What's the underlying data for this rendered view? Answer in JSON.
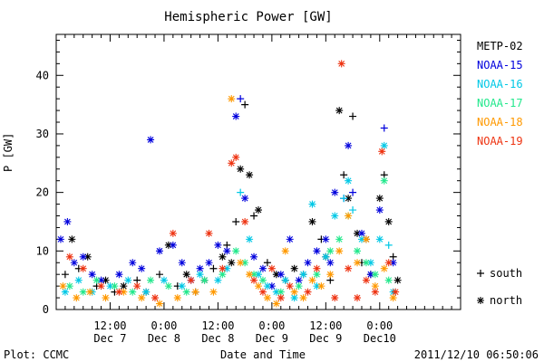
{
  "chart_data": {
    "type": "scatter",
    "title": "Hemispheric Power [GW]",
    "ylabel": "P [GW]",
    "xlabel": "Date and Time",
    "ylim": [
      0,
      47
    ],
    "yticks": [
      0,
      10,
      20,
      30,
      40
    ],
    "xlim_hours": [
      0,
      90
    ],
    "xticks": [
      {
        "h": 12,
        "l1": "12:00",
        "l2": "Dec 7"
      },
      {
        "h": 24,
        "l1": "0:00",
        "l2": "Dec 8"
      },
      {
        "h": 36,
        "l1": "12:00",
        "l2": "Dec 8"
      },
      {
        "h": 48,
        "l1": "0:00",
        "l2": "Dec 9"
      },
      {
        "h": 60,
        "l1": "12:00",
        "l2": "Dec 9"
      },
      {
        "h": 72,
        "l1": "0:00",
        "l2": "Dec10"
      }
    ],
    "grid": false,
    "legend_placement": "right",
    "series": [
      {
        "name": "METP-02",
        "color": "#000000",
        "points": [
          [
            2,
            6,
            "+"
          ],
          [
            3.5,
            12,
            "*"
          ],
          [
            5,
            7,
            "+"
          ],
          [
            7,
            9,
            "*"
          ],
          [
            9,
            4,
            "+"
          ],
          [
            11,
            5,
            "*"
          ],
          [
            13,
            3,
            "+"
          ],
          [
            15,
            4,
            "*"
          ],
          [
            18,
            5,
            "+"
          ],
          [
            20,
            3,
            "*"
          ],
          [
            23,
            6,
            "+"
          ],
          [
            25,
            11,
            "*"
          ],
          [
            27,
            4,
            "+"
          ],
          [
            29,
            6,
            "*"
          ],
          [
            31,
            3,
            "+"
          ],
          [
            33,
            5,
            "*"
          ],
          [
            35,
            7,
            "+"
          ],
          [
            37,
            9,
            "*"
          ],
          [
            38,
            11,
            "+"
          ],
          [
            39,
            8,
            "*"
          ],
          [
            40,
            15,
            "+"
          ],
          [
            41,
            24,
            "*"
          ],
          [
            42,
            35,
            "+"
          ],
          [
            43,
            23,
            "*"
          ],
          [
            44,
            16,
            "+"
          ],
          [
            45,
            17,
            "*"
          ],
          [
            47,
            8,
            "+"
          ],
          [
            49,
            6,
            "*"
          ],
          [
            51,
            5,
            "+"
          ],
          [
            53,
            7,
            "*"
          ],
          [
            55,
            6,
            "+"
          ],
          [
            57,
            15,
            "*"
          ],
          [
            59,
            12,
            "+"
          ],
          [
            60,
            9,
            "*"
          ],
          [
            61,
            5,
            "+"
          ],
          [
            63,
            34,
            "*"
          ],
          [
            64,
            23,
            "+"
          ],
          [
            65,
            19,
            "*"
          ],
          [
            66,
            33,
            "+"
          ],
          [
            67,
            13,
            "*"
          ],
          [
            68,
            8,
            "+"
          ],
          [
            69,
            12,
            "*"
          ],
          [
            70,
            6,
            "+"
          ],
          [
            72,
            19,
            "*"
          ],
          [
            73,
            23,
            "+"
          ],
          [
            74,
            15,
            "*"
          ],
          [
            75,
            9,
            "+"
          ],
          [
            76,
            5,
            "*"
          ]
        ]
      },
      {
        "name": "NOAA-15",
        "color": "#0000dd",
        "points": [
          [
            1,
            12,
            "*"
          ],
          [
            2.5,
            15,
            "*"
          ],
          [
            4,
            8,
            "*"
          ],
          [
            6,
            9,
            "*"
          ],
          [
            8,
            6,
            "*"
          ],
          [
            10,
            5,
            "*"
          ],
          [
            14,
            6,
            "*"
          ],
          [
            17,
            8,
            "*"
          ],
          [
            19,
            7,
            "*"
          ],
          [
            21,
            29,
            "*"
          ],
          [
            23,
            10,
            "*"
          ],
          [
            26,
            11,
            "*"
          ],
          [
            28,
            8,
            "*"
          ],
          [
            30,
            5,
            "*"
          ],
          [
            32,
            7,
            "*"
          ],
          [
            34,
            8,
            "*"
          ],
          [
            36,
            11,
            "*"
          ],
          [
            38,
            10,
            "*"
          ],
          [
            40,
            33,
            "*"
          ],
          [
            41,
            36,
            "+"
          ],
          [
            42,
            19,
            "*"
          ],
          [
            44,
            9,
            "*"
          ],
          [
            46,
            7,
            "*"
          ],
          [
            48,
            4,
            "*"
          ],
          [
            50,
            6,
            "*"
          ],
          [
            52,
            12,
            "*"
          ],
          [
            54,
            5,
            "*"
          ],
          [
            56,
            8,
            "*"
          ],
          [
            58,
            10,
            "*"
          ],
          [
            60,
            12,
            "*"
          ],
          [
            61,
            8,
            "*"
          ],
          [
            62,
            20,
            "*"
          ],
          [
            64,
            19,
            "+"
          ],
          [
            65,
            28,
            "*"
          ],
          [
            66,
            20,
            "+"
          ],
          [
            68,
            13,
            "*"
          ],
          [
            70,
            6,
            "*"
          ],
          [
            72,
            17,
            "*"
          ],
          [
            73,
            31,
            "+"
          ],
          [
            75,
            8,
            "*"
          ]
        ]
      },
      {
        "name": "NOAA-16",
        "color": "#00c8e6",
        "points": [
          [
            2,
            3,
            "*"
          ],
          [
            5,
            5,
            "*"
          ],
          [
            8,
            3,
            "*"
          ],
          [
            12,
            4,
            "*"
          ],
          [
            16,
            5,
            "*"
          ],
          [
            20,
            3,
            "*"
          ],
          [
            24,
            5,
            "*"
          ],
          [
            28,
            4,
            "*"
          ],
          [
            32,
            6,
            "*"
          ],
          [
            36,
            5,
            "*"
          ],
          [
            38,
            7,
            "*"
          ],
          [
            41,
            20,
            "+"
          ],
          [
            43,
            12,
            "*"
          ],
          [
            45,
            6,
            "*"
          ],
          [
            47,
            4,
            "*"
          ],
          [
            49,
            3,
            "*"
          ],
          [
            51,
            5,
            "*"
          ],
          [
            53,
            2,
            "*"
          ],
          [
            55,
            6,
            "*"
          ],
          [
            57,
            18,
            "*"
          ],
          [
            58,
            4,
            "*"
          ],
          [
            60,
            9,
            "*"
          ],
          [
            62,
            16,
            "*"
          ],
          [
            64,
            19,
            "+"
          ],
          [
            65,
            22,
            "*"
          ],
          [
            66,
            17,
            "+"
          ],
          [
            68,
            12,
            "*"
          ],
          [
            70,
            8,
            "*"
          ],
          [
            72,
            12,
            "*"
          ],
          [
            73,
            28,
            "*"
          ],
          [
            74,
            11,
            "+"
          ],
          [
            75,
            3,
            "*"
          ]
        ]
      },
      {
        "name": "NOAA-17",
        "color": "#22e88c",
        "points": [
          [
            3,
            4,
            "*"
          ],
          [
            6,
            3,
            "*"
          ],
          [
            9,
            5,
            "*"
          ],
          [
            13,
            4,
            "*"
          ],
          [
            17,
            3,
            "*"
          ],
          [
            21,
            5,
            "*"
          ],
          [
            25,
            4,
            "*"
          ],
          [
            29,
            3,
            "*"
          ],
          [
            33,
            5,
            "*"
          ],
          [
            37,
            6,
            "*"
          ],
          [
            40,
            10,
            "*"
          ],
          [
            42,
            8,
            "*"
          ],
          [
            44,
            6,
            "*"
          ],
          [
            46,
            5,
            "*"
          ],
          [
            50,
            3,
            "*"
          ],
          [
            54,
            4,
            "*"
          ],
          [
            58,
            6,
            "*"
          ],
          [
            61,
            10,
            "*"
          ],
          [
            63,
            12,
            "*"
          ],
          [
            65,
            16,
            "*"
          ],
          [
            67,
            10,
            "*"
          ],
          [
            69,
            8,
            "*"
          ],
          [
            71,
            6,
            "*"
          ],
          [
            73,
            22,
            "*"
          ],
          [
            74,
            5,
            "*"
          ]
        ]
      },
      {
        "name": "NOAA-18",
        "color": "#ff9900",
        "points": [
          [
            1.5,
            4,
            "*"
          ],
          [
            4.5,
            2,
            "*"
          ],
          [
            7.5,
            3,
            "*"
          ],
          [
            11,
            2,
            "*"
          ],
          [
            15,
            3,
            "*"
          ],
          [
            19,
            2,
            "*"
          ],
          [
            23,
            1,
            "*"
          ],
          [
            27,
            2,
            "*"
          ],
          [
            31,
            3,
            "*"
          ],
          [
            35,
            3,
            "*"
          ],
          [
            39,
            36,
            "*"
          ],
          [
            41,
            8,
            "*"
          ],
          [
            43,
            6,
            "*"
          ],
          [
            45,
            4,
            "*"
          ],
          [
            47,
            2,
            "*"
          ],
          [
            49,
            1,
            "*"
          ],
          [
            51,
            10,
            "*"
          ],
          [
            53,
            3,
            "*"
          ],
          [
            55,
            2,
            "*"
          ],
          [
            57,
            5,
            "*"
          ],
          [
            59,
            4,
            "*"
          ],
          [
            61,
            6,
            "*"
          ],
          [
            63,
            10,
            "*"
          ],
          [
            65,
            16,
            "*"
          ],
          [
            67,
            8,
            "*"
          ],
          [
            69,
            12,
            "*"
          ],
          [
            71,
            4,
            "*"
          ],
          [
            73,
            7,
            "*"
          ],
          [
            75,
            2,
            "*"
          ]
        ]
      },
      {
        "name": "NOAA-19",
        "color": "#ee3311",
        "points": [
          [
            3,
            9,
            "*"
          ],
          [
            6,
            7,
            "*"
          ],
          [
            10,
            4,
            "*"
          ],
          [
            14,
            3,
            "*"
          ],
          [
            18,
            4,
            "*"
          ],
          [
            22,
            2,
            "*"
          ],
          [
            26,
            13,
            "*"
          ],
          [
            30,
            5,
            "*"
          ],
          [
            34,
            13,
            "*"
          ],
          [
            37,
            7,
            "*"
          ],
          [
            39,
            25,
            "*"
          ],
          [
            40,
            26,
            "*"
          ],
          [
            42,
            15,
            "*"
          ],
          [
            44,
            5,
            "*"
          ],
          [
            46,
            3,
            "*"
          ],
          [
            48,
            7,
            "*"
          ],
          [
            50,
            2,
            "*"
          ],
          [
            52,
            4,
            "*"
          ],
          [
            56,
            3,
            "*"
          ],
          [
            58,
            7,
            "*"
          ],
          [
            62,
            2,
            "*"
          ],
          [
            63.5,
            42,
            "*"
          ],
          [
            65,
            7,
            "*"
          ],
          [
            67,
            2,
            "*"
          ],
          [
            69,
            5,
            "*"
          ],
          [
            71,
            3,
            "*"
          ],
          [
            72.5,
            27,
            "*"
          ],
          [
            74,
            8,
            "*"
          ],
          [
            75.5,
            3,
            "*"
          ]
        ]
      }
    ]
  },
  "symbols": [
    {
      "glyph": "+",
      "label": "south"
    },
    {
      "glyph": "*",
      "label": "north"
    }
  ],
  "footer": {
    "left": "Plot: CCMC",
    "right": "2011/12/10 06:50:06"
  }
}
